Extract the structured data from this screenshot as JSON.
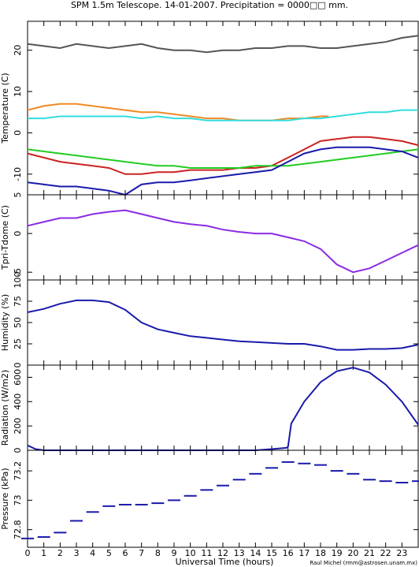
{
  "title": "SPM 1.5m Telescope. 14-01-2007. Precipitation = 0000□□ mm.",
  "credit": "Raul Michel (rmm@astrosen.unam.mx)",
  "chart_data": [
    {
      "type": "line",
      "ylabel": "Temperature (C)",
      "ylim": [
        -15,
        27
      ],
      "yticks": [
        -10,
        0,
        10,
        20
      ],
      "series": [
        {
          "color": "#555555",
          "x": [
            0,
            1,
            2,
            3,
            4,
            5,
            6,
            7,
            8,
            9,
            10,
            11,
            12,
            13,
            14,
            15,
            16,
            17,
            18,
            19,
            20,
            21,
            22,
            23,
            24
          ],
          "values": [
            21.5,
            21,
            20.5,
            21.5,
            21,
            20.5,
            21,
            21.5,
            20.5,
            20,
            20,
            19.5,
            20,
            20,
            20.5,
            20.5,
            21,
            21,
            20.5,
            20.5,
            21,
            21.5,
            22,
            23,
            23.5
          ]
        },
        {
          "color": "#f08a24",
          "x": [
            0,
            1,
            2,
            3,
            4,
            5,
            6,
            7,
            8,
            9,
            10,
            11,
            12,
            13,
            14,
            15,
            16,
            17,
            18,
            18.5
          ],
          "values": [
            5.5,
            6.5,
            7,
            7,
            6.5,
            6,
            5.5,
            5,
            5,
            4.5,
            4,
            3.5,
            3.5,
            3,
            3,
            3,
            3.5,
            3.5,
            4,
            4
          ]
        },
        {
          "color": "#33dddd",
          "x": [
            0,
            1,
            2,
            3,
            4,
            5,
            6,
            7,
            8,
            9,
            10,
            11,
            12,
            13,
            14,
            15,
            16,
            17,
            18,
            19,
            20,
            21,
            22,
            23,
            24
          ],
          "values": [
            3.5,
            3.5,
            4,
            4,
            4,
            4,
            4,
            3.5,
            4,
            3.5,
            3.5,
            3,
            3,
            3,
            3,
            3,
            3,
            3.5,
            3.5,
            4,
            4.5,
            5,
            5,
            5.5,
            5.5
          ]
        },
        {
          "color": "#cc2222",
          "x": [
            0,
            1,
            2,
            3,
            4,
            5,
            6,
            7,
            8,
            9,
            10,
            11,
            12,
            13,
            14,
            15,
            16,
            17,
            18,
            19,
            20,
            21,
            22,
            23,
            24
          ],
          "values": [
            -5,
            -6,
            -7,
            -7.5,
            -8,
            -8.5,
            -10,
            -10,
            -9.5,
            -9.5,
            -9,
            -9,
            -9,
            -8.5,
            -8.5,
            -8,
            -6,
            -4,
            -2,
            -1.5,
            -1,
            -1,
            -1.5,
            -2,
            -3
          ]
        },
        {
          "color": "#22cc22",
          "x": [
            0,
            1,
            2,
            3,
            4,
            5,
            6,
            7,
            8,
            9,
            10,
            11,
            12,
            13,
            14,
            15,
            16,
            17,
            18,
            19,
            20,
            21,
            22,
            23,
            24
          ],
          "values": [
            -4,
            -4.5,
            -5,
            -5.5,
            -6,
            -6.5,
            -7,
            -7.5,
            -8,
            -8,
            -8.5,
            -8.5,
            -8.5,
            -8.5,
            -8,
            -8,
            -8,
            -7.5,
            -7,
            -6.5,
            -6,
            -5.5,
            -5,
            -4.5,
            -4
          ]
        },
        {
          "color": "#1a1aaa",
          "x": [
            0,
            1,
            2,
            3,
            4,
            5,
            6,
            7,
            8,
            9,
            10,
            11,
            12,
            13,
            14,
            15,
            16,
            17,
            18,
            19,
            20,
            21,
            22,
            23,
            24
          ],
          "values": [
            -12,
            -12.5,
            -13,
            -13,
            -13.5,
            -14,
            -15,
            -12.5,
            -12,
            -12,
            -11.5,
            -11,
            -10.5,
            -10,
            -9.5,
            -9,
            -7,
            -5,
            -4,
            -3.5,
            -3.5,
            -3.5,
            -4,
            -4.5,
            -6
          ]
        }
      ]
    },
    {
      "type": "line",
      "ylabel": "Tpri-Tdome (C)",
      "ylim": [
        -6,
        5
      ],
      "yticks": [
        -5,
        0,
        5
      ],
      "series": [
        {
          "color": "#8a2be2",
          "x": [
            0,
            1,
            2,
            3,
            4,
            5,
            6,
            7,
            8,
            9,
            10,
            11,
            12,
            13,
            14,
            15,
            16,
            17,
            18,
            19,
            20,
            21,
            22,
            23,
            24
          ],
          "values": [
            1,
            1.5,
            2,
            2,
            2.5,
            2.8,
            3,
            2.5,
            2,
            1.5,
            1.2,
            1,
            0.5,
            0.2,
            0,
            0,
            -0.5,
            -1,
            -2,
            -4,
            -5,
            -4.5,
            -3.5,
            -2.5,
            -1.5
          ]
        }
      ]
    },
    {
      "type": "line",
      "ylabel": "Humidity (%)",
      "ylim": [
        0,
        100
      ],
      "yticks": [
        0,
        25,
        50,
        75,
        100
      ],
      "series": [
        {
          "color": "#1a1aaa",
          "x": [
            0,
            1,
            2,
            3,
            4,
            5,
            6,
            7,
            8,
            9,
            10,
            11,
            12,
            13,
            14,
            15,
            16,
            17,
            18,
            19,
            20,
            21,
            22,
            23,
            24
          ],
          "values": [
            62,
            66,
            72,
            76,
            76,
            74,
            65,
            50,
            42,
            38,
            34,
            32,
            30,
            28,
            27,
            26,
            25,
            25,
            22,
            18,
            18,
            19,
            19,
            20,
            24
          ]
        }
      ]
    },
    {
      "type": "line",
      "ylabel": "Radiation (W/m2)",
      "ylim": [
        0,
        700
      ],
      "yticks": [
        0,
        200,
        400,
        600
      ],
      "series": [
        {
          "color": "#1a1aaa",
          "x": [
            0,
            0.5,
            1,
            2,
            3,
            4,
            5,
            6,
            7,
            8,
            9,
            10,
            11,
            12,
            13,
            14,
            15,
            15.9,
            16,
            16.2,
            17,
            18,
            19,
            20,
            21,
            22,
            23,
            24
          ],
          "values": [
            40,
            10,
            0,
            0,
            0,
            0,
            0,
            0,
            0,
            0,
            0,
            0,
            0,
            0,
            0,
            0,
            10,
            20,
            30,
            220,
            400,
            560,
            650,
            680,
            640,
            540,
            400,
            210
          ]
        }
      ]
    },
    {
      "type": "scatter",
      "ylabel": "Pressure (kPa)",
      "xlabel": "Universal Time (hours)",
      "ylim": [
        72.68,
        73.34
      ],
      "yticks": [
        72.8,
        73,
        73.2
      ],
      "xlim": [
        0,
        24
      ],
      "xticks": [
        0,
        1,
        2,
        3,
        4,
        5,
        6,
        7,
        8,
        9,
        10,
        11,
        12,
        13,
        14,
        15,
        16,
        17,
        18,
        19,
        20,
        21,
        22,
        23
      ],
      "series": [
        {
          "color": "#1a1aaa",
          "x": [
            0,
            1,
            2,
            3,
            4,
            5,
            6,
            7,
            8,
            9,
            10,
            11,
            12,
            13,
            14,
            15,
            16,
            17,
            18,
            19,
            20,
            21,
            22,
            23,
            24
          ],
          "values": [
            72.74,
            72.75,
            72.78,
            72.86,
            72.92,
            72.96,
            72.97,
            72.97,
            72.98,
            73.0,
            73.03,
            73.07,
            73.1,
            73.14,
            73.18,
            73.22,
            73.26,
            73.25,
            73.24,
            73.2,
            73.18,
            73.14,
            73.13,
            73.12,
            73.13
          ]
        }
      ]
    }
  ]
}
